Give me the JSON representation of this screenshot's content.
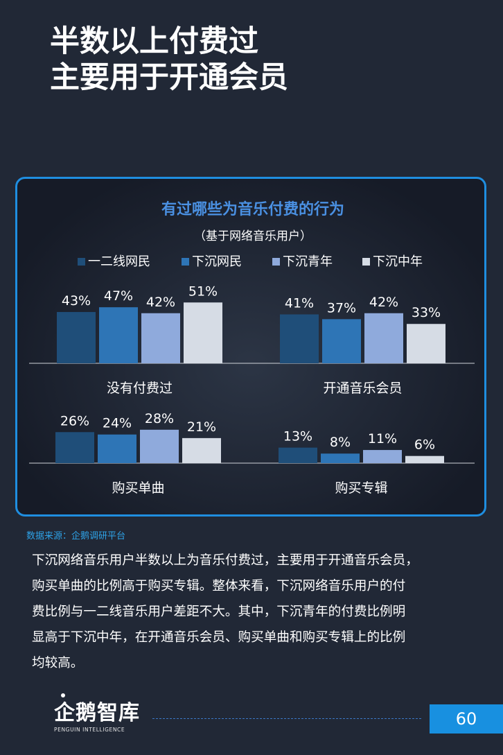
{
  "page": {
    "title_lines": [
      "半数以上付费过",
      "主要用于开通会员"
    ],
    "source": "数据来源：企鹅调研平台",
    "body_lines": [
      "下沉网络音乐用户半数以上为音乐付费过，主要用于开通音乐会员，",
      "购买单曲的比例高于购买专辑。整体来看，下沉网络音乐用户的付",
      "费比例与一二线音乐用户差距不大。其中，下沉青年的付费比例明",
      "显高于下沉中年，在开通音乐会员、购买单曲和购买专辑上的比例",
      "均较高。"
    ],
    "logo_text": "企鹅智库",
    "logo_subtext": "PENGUIN INTELLIGENCE",
    "page_number": "60"
  },
  "chart_data": {
    "type": "bar",
    "title": "有过哪些为音乐付费的行为",
    "subtitle": "（基于网络音乐用户）",
    "legend_position": "top",
    "unit": "%",
    "categories": [
      "没有付费过",
      "开通音乐会员",
      "购买单曲",
      "购买专辑"
    ],
    "series": [
      {
        "name": "一二线网民",
        "color": "#1f4e79",
        "values": [
          43,
          41,
          26,
          13
        ]
      },
      {
        "name": "下沉网民",
        "color": "#2e75b6",
        "values": [
          47,
          37,
          24,
          8
        ]
      },
      {
        "name": "下沉青年",
        "color": "#8faadc",
        "values": [
          42,
          42,
          28,
          11
        ]
      },
      {
        "name": "下沉中年",
        "color": "#d6dce5",
        "values": [
          51,
          33,
          21,
          6
        ]
      }
    ],
    "title_color": "#4a90e2"
  }
}
